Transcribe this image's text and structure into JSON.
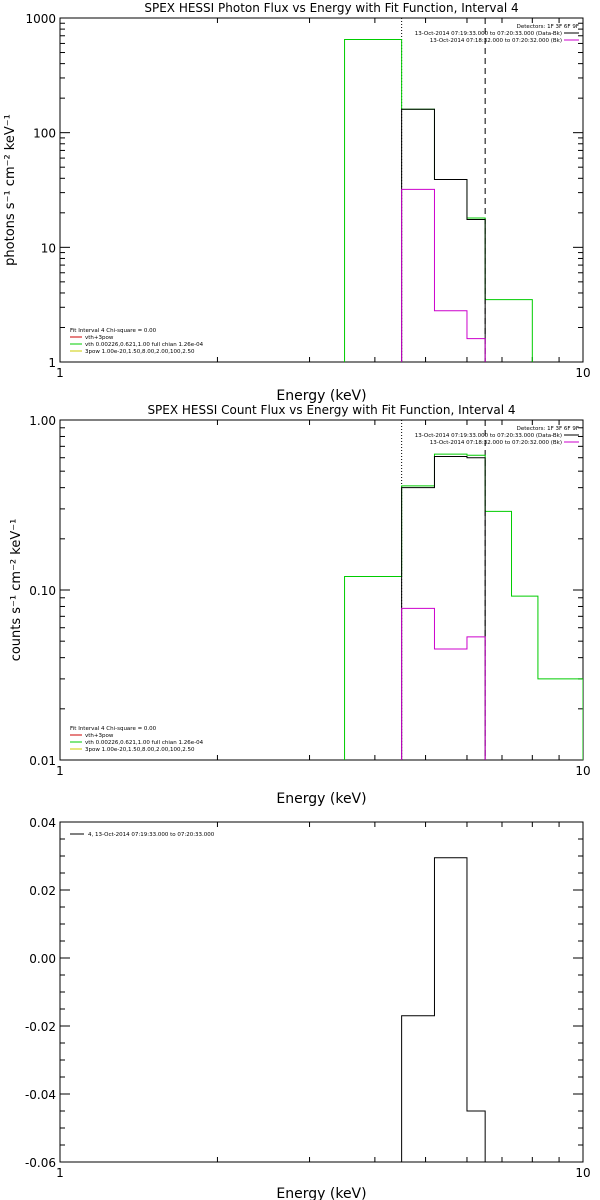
{
  "chart_data": [
    {
      "type": "line",
      "step": true,
      "title": "SPEX HESSI Photon Flux vs Energy with Fit Function, Interval 4",
      "xlabel": "Energy (keV)",
      "ylabel": "photons s⁻¹ cm⁻² keV⁻¹",
      "xscale": "log",
      "yscale": "log",
      "xlim": [
        1,
        10
      ],
      "ylim": [
        1,
        1000
      ],
      "xticks": [
        "1",
        "10"
      ],
      "yticks": [
        "1",
        "10",
        "100",
        "1000"
      ],
      "vlines": [
        {
          "x": 4.5,
          "style": "dotted"
        },
        {
          "x": 6.5,
          "style": "dashed"
        }
      ],
      "detectors_label": "Detectors: 1F 3F 6F 9F",
      "legend_right": [
        {
          "text": "13-Oct-2014 07:19:33.000 to 07:20:33.000 (Data-Bk)",
          "color": "#000000"
        },
        {
          "text": "13-Oct-2014 07:18:32.000 to 07:20:32.000 (Bk)",
          "color": "#cc00cc"
        }
      ],
      "legend_left_title": "Fit Interval 4   Chi-square = 0.00",
      "legend_left": [
        {
          "text": "vth+3pow",
          "color": "#cc0000"
        },
        {
          "text": "vth 0.00226,0.621,1.00  full chian 1.26e-04",
          "color": "#00cc00"
        },
        {
          "text": "3pow 1.00e-20,1.50,8.00,2.00,100,2.50",
          "color": "#cccc00"
        }
      ],
      "series": [
        {
          "color": "#00cc00",
          "edges": [
            3.5,
            4.5,
            5.2,
            6,
            6.5,
            8
          ],
          "values": [
            650,
            160,
            39,
            18,
            3.5
          ],
          "base": 1
        },
        {
          "color": "#000000",
          "edges": [
            4.5,
            5.2,
            6,
            6.5
          ],
          "values": [
            160,
            39,
            17.5
          ],
          "base": 1
        },
        {
          "color": "#cc00cc",
          "edges": [
            4.5,
            5.2,
            6,
            6.5
          ],
          "values": [
            32,
            2.8,
            1.6
          ],
          "base": 1
        }
      ]
    },
    {
      "type": "line",
      "step": true,
      "title": "SPEX HESSI Count Flux vs Energy with Fit Function, Interval 4",
      "xlabel": "Energy (keV)",
      "ylabel": "counts s⁻¹ cm⁻² keV⁻¹",
      "xscale": "log",
      "yscale": "log",
      "xlim": [
        1,
        10
      ],
      "ylim": [
        0.01,
        1
      ],
      "xticks": [
        "1",
        "10"
      ],
      "yticks": [
        "0.01",
        "0.10",
        "1.00"
      ],
      "vlines": [
        {
          "x": 4.5,
          "style": "dotted"
        },
        {
          "x": 6.5,
          "style": "dashed"
        }
      ],
      "detectors_label": "Detectors: 1F 3F 6F 9F",
      "legend_right": [
        {
          "text": "13-Oct-2014 07:19:33.000 to 07:20:33.000 (Data-Bk)",
          "color": "#000000"
        },
        {
          "text": "13-Oct-2014 07:18:32.000 to 07:20:32.000 (Bk)",
          "color": "#cc00cc"
        }
      ],
      "legend_left_title": "Fit Interval 4   Chi-square = 0.00",
      "legend_left": [
        {
          "text": "vth+3pow",
          "color": "#cc0000"
        },
        {
          "text": "vth 0.00226,0.621,1.00  full chian 1.26e-04",
          "color": "#00cc00"
        },
        {
          "text": "3pow 1.00e-20,1.50,8.00,2.00,100,2.50",
          "color": "#cccc00"
        }
      ],
      "series": [
        {
          "color": "#00cc00",
          "edges": [
            3.5,
            4.5,
            5.2,
            6,
            6.5,
            7.3,
            8.2,
            10
          ],
          "values": [
            0.12,
            0.41,
            0.63,
            0.62,
            0.29,
            0.092,
            0.03
          ],
          "base": 0.01
        },
        {
          "color": "#000000",
          "edges": [
            4.5,
            5.2,
            6,
            6.5
          ],
          "values": [
            0.4,
            0.61,
            0.6
          ],
          "base": 0.01
        },
        {
          "color": "#cc00cc",
          "edges": [
            4.5,
            5.2,
            6,
            6.5
          ],
          "values": [
            0.078,
            0.045,
            0.053
          ],
          "base": 0.01
        }
      ]
    },
    {
      "type": "line",
      "step": true,
      "title": "",
      "xlabel": "Energy (keV)",
      "ylabel": "",
      "xscale": "log",
      "yscale": "linear",
      "xlim": [
        1,
        10
      ],
      "ylim": [
        -0.06,
        0.04
      ],
      "xticks": [
        "1",
        "10"
      ],
      "yticks": [
        "-0.06",
        "-0.04",
        "-0.02",
        "0.00",
        "0.02",
        "0.04"
      ],
      "legend": [
        {
          "text": "4, 13-Oct-2014 07:19:33.000 to 07:20:33.000",
          "color": "#000000"
        }
      ],
      "series": [
        {
          "color": "#000000",
          "edges": [
            4.5,
            5.2,
            6,
            6.5
          ],
          "values": [
            -0.017,
            0.0295,
            -0.045
          ],
          "base": -0.06
        }
      ]
    }
  ]
}
